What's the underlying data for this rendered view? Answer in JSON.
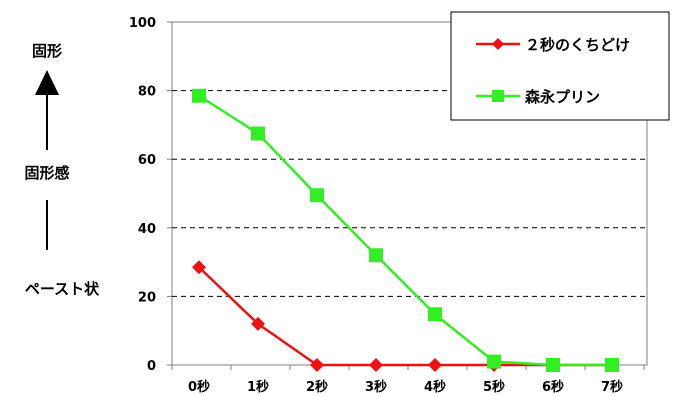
{
  "chart_data": {
    "type": "line",
    "categories": [
      "0秒",
      "1秒",
      "2秒",
      "3秒",
      "4秒",
      "5秒",
      "6秒",
      "7秒"
    ],
    "series": [
      {
        "name": "２秒のくちどけ",
        "values": [
          28.5,
          12,
          0,
          0,
          0,
          0,
          0,
          0
        ],
        "color": "#ee1111",
        "marker": "diamond"
      },
      {
        "name": "森永プリン",
        "values": [
          78.5,
          67.5,
          49.5,
          32,
          14.8,
          1,
          0,
          0
        ],
        "color": "#33ee22",
        "marker": "square"
      }
    ],
    "ylim": [
      0,
      100
    ],
    "yticks": [
      "0",
      "20",
      "40",
      "60",
      "80",
      "100"
    ],
    "grid": "horizontal dashed",
    "legend_position": "top-right",
    "side_labels": {
      "top": "固形",
      "middle": "固形感",
      "bottom": "ペースト状"
    }
  }
}
